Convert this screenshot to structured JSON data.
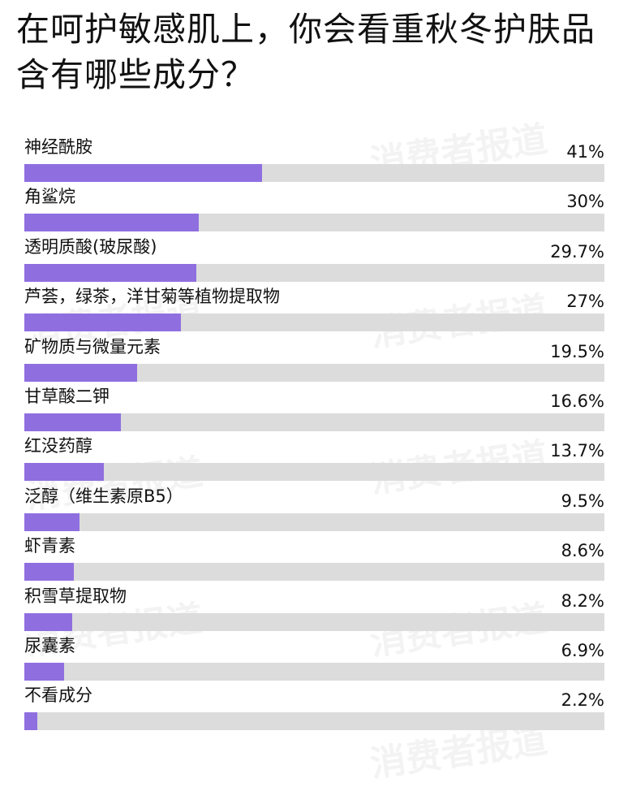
{
  "title": "在呵护敏感肌上，你会看重秋冬护肤品含有哪些成分？",
  "watermark": "消费者报道",
  "colors": {
    "bar": "#8f6fe0",
    "track": "#dcdcdc"
  },
  "chart_data": {
    "type": "bar",
    "orientation": "horizontal",
    "title": "在呵护敏感肌上，你会看重秋冬护肤品含有哪些成分？",
    "xlim": [
      0,
      100
    ],
    "categories": [
      "神经酰胺",
      "角鲨烷",
      "透明质酸(玻尿酸)",
      "芦荟，绿茶，洋甘菊等植物提取物",
      "矿物质与微量元素",
      "甘草酸二钾",
      "红没药醇",
      "泛醇（维生素原B5）",
      "虾青素",
      "积雪草提取物",
      "尿囊素",
      "不看成分"
    ],
    "values": [
      41,
      30,
      29.7,
      27,
      19.5,
      16.6,
      13.7,
      9.5,
      8.6,
      8.2,
      6.9,
      2.2
    ],
    "value_labels": [
      "41%",
      "30%",
      "29.7%",
      "27%",
      "19.5%",
      "16.6%",
      "13.7%",
      "9.5%",
      "8.6%",
      "8.2%",
      "6.9%",
      "2.2%"
    ]
  }
}
